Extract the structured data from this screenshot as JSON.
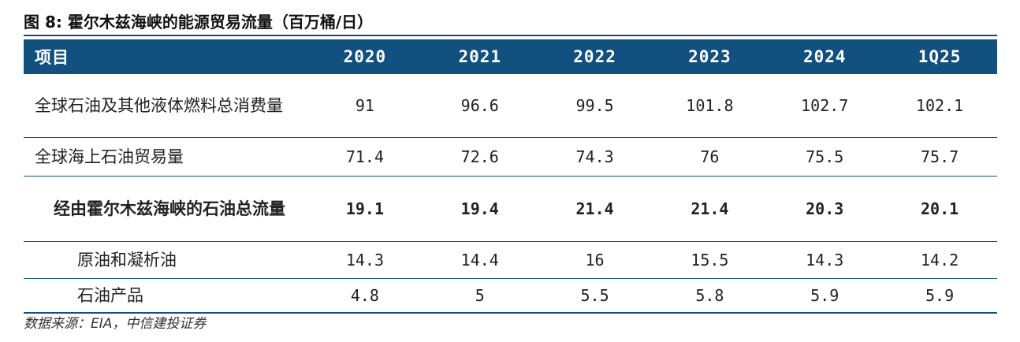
{
  "title": "图 8: 霍尔木兹海峡的能源贸易流量（百万桶/日）",
  "table": {
    "header": [
      "项目",
      "2020",
      "2021",
      "2022",
      "2023",
      "2024",
      "1Q25"
    ],
    "rows": [
      [
        "全球石油及其他液体燃料总消费量",
        91,
        96.6,
        99.5,
        101.8,
        102.7,
        102.1
      ],
      [
        "全球海上石油贸易量",
        71.4,
        72.6,
        74.3,
        76,
        75.5,
        75.7
      ],
      [
        "经由霍尔木兹海峡的石油总流量",
        19.1,
        19.4,
        21.4,
        21.4,
        20.3,
        20.1
      ],
      [
        "原油和凝析油",
        14.3,
        14.4,
        16,
        15.5,
        14.3,
        14.2
      ],
      [
        "石油产品",
        4.8,
        5,
        5.5,
        5.8,
        5.9,
        5.9
      ]
    ]
  },
  "source": "数据来源：EIA，中信建投证券"
}
